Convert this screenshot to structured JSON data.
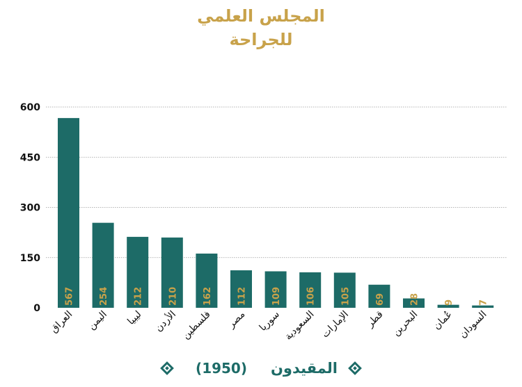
{
  "header": {
    "title_line1": "المجلس العلمي",
    "title_line2": "للجراحة"
  },
  "colors": {
    "bar": "#1d6b67",
    "title": "#c8a24a",
    "value_label": "#c8a24a"
  },
  "legend": {
    "series_label": "المقيدون",
    "count": "(1950)"
  },
  "chart_data": {
    "type": "bar",
    "categories": [
      "العراق",
      "اليمن",
      "ليبيا",
      "الأردن",
      "فلسطين",
      "مصر",
      "سوريا",
      "السعودية",
      "الإمارات",
      "قطر",
      "البحرين",
      "عُمان",
      "السودان"
    ],
    "series": [
      {
        "name": "المقيدون",
        "values": [
          567,
          254,
          212,
          210,
          162,
          112,
          109,
          106,
          105,
          69,
          28,
          9,
          7
        ]
      }
    ],
    "ylim": [
      0,
      600
    ],
    "yticks": [
      0,
      150,
      300,
      450,
      600
    ],
    "grid": true,
    "legend_position": "bottom"
  }
}
